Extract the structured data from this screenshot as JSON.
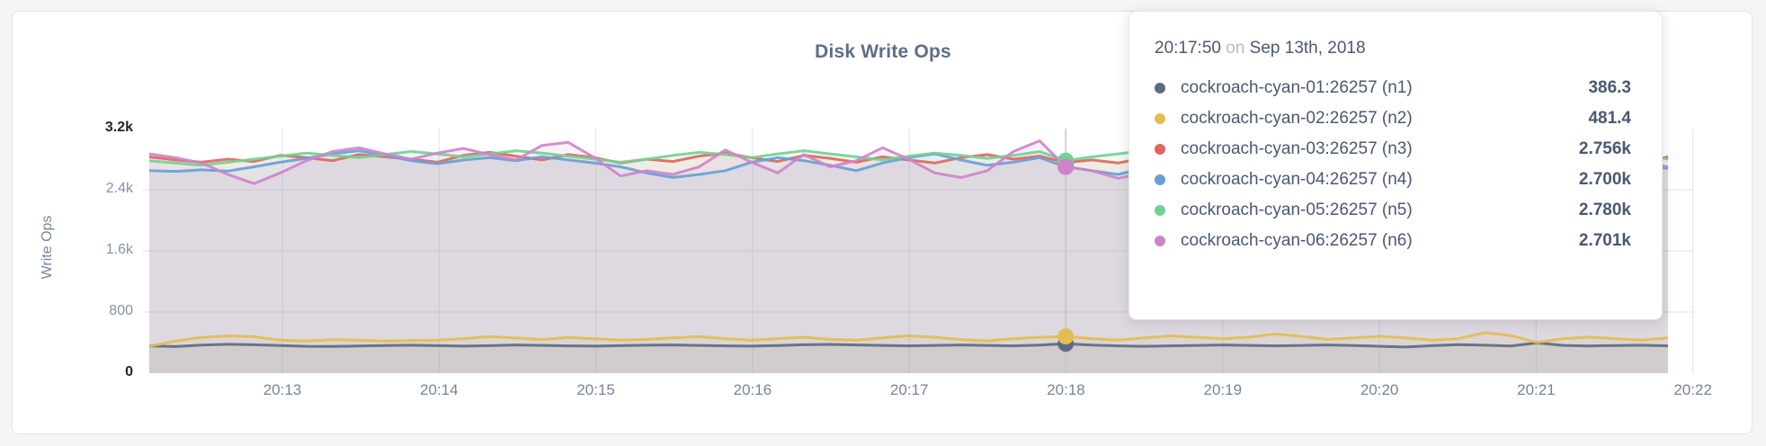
{
  "tooltip": {
    "time": "20:17:50",
    "conjunction": "on",
    "date": "Sep 13th, 2018"
  },
  "chart_data": {
    "type": "line",
    "title": "Disk Write Ops",
    "ylabel": "Write Ops",
    "xlabel": "",
    "ylim": [
      0,
      3200
    ],
    "grid": true,
    "legend_position": "tooltip",
    "y_ticks": [
      {
        "label": "0",
        "value": 0,
        "strong": true
      },
      {
        "label": "800",
        "value": 800,
        "strong": false
      },
      {
        "label": "1.6k",
        "value": 1600,
        "strong": false
      },
      {
        "label": "2.4k",
        "value": 2400,
        "strong": false
      },
      {
        "label": "3.2k",
        "value": 3200,
        "strong": true
      }
    ],
    "x_ticks": [
      "20:13",
      "20:14",
      "20:15",
      "20:16",
      "20:17",
      "20:18",
      "20:19",
      "20:20",
      "20:21",
      "20:22"
    ],
    "hover_index": 35,
    "hover_line_color": "#c6c6c6",
    "series": [
      {
        "name": "cockroach-cyan-01:26257 (n1)",
        "color": "#5d6a84",
        "hover_value": "386.3",
        "values": [
          358,
          348,
          368,
          378,
          372,
          362,
          352,
          350,
          356,
          362,
          366,
          360,
          354,
          360,
          370,
          364,
          358,
          354,
          360,
          366,
          370,
          364,
          358,
          354,
          362,
          372,
          376,
          370,
          364,
          358,
          364,
          370,
          364,
          358,
          368,
          386,
          368,
          358,
          352,
          358,
          364,
          370,
          364,
          358,
          364,
          370,
          362,
          352,
          342,
          360,
          374,
          366,
          356,
          398,
          364,
          356,
          362,
          366,
          358
        ]
      },
      {
        "name": "cockroach-cyan-02:26257 (n2)",
        "color": "#e3bd51",
        "hover_value": "481.4",
        "values": [
          352,
          420,
          468,
          488,
          478,
          432,
          420,
          438,
          430,
          420,
          426,
          432,
          452,
          478,
          460,
          440,
          468,
          450,
          432,
          442,
          462,
          480,
          452,
          430,
          452,
          470,
          442,
          430,
          462,
          490,
          470,
          440,
          422,
          452,
          470,
          481,
          452,
          432,
          462,
          490,
          470,
          450,
          472,
          512,
          482,
          442,
          462,
          482,
          462,
          432,
          452,
          530,
          492,
          402,
          452,
          472,
          452,
          432,
          462
        ]
      },
      {
        "name": "cockroach-cyan-03:26257 (n3)",
        "color": "#df675f",
        "hover_value": "2.756k",
        "values": [
          2830,
          2790,
          2760,
          2800,
          2770,
          2850,
          2820,
          2780,
          2860,
          2830,
          2800,
          2760,
          2850,
          2890,
          2840,
          2790,
          2860,
          2820,
          2750,
          2800,
          2770,
          2840,
          2880,
          2820,
          2770,
          2850,
          2810,
          2760,
          2830,
          2790,
          2750,
          2820,
          2860,
          2800,
          2840,
          2756,
          2790,
          2750,
          2820,
          2780,
          2850,
          2800,
          2760,
          2830,
          2790,
          2850,
          2810,
          2770,
          2840,
          2800,
          2760,
          2830,
          2870,
          2810,
          2770,
          2840,
          2800,
          2760,
          2830
        ]
      },
      {
        "name": "cockroach-cyan-04:26257 (n4)",
        "color": "#689fd6",
        "hover_value": "2.700k",
        "values": [
          2650,
          2640,
          2660,
          2645,
          2700,
          2760,
          2810,
          2870,
          2910,
          2850,
          2780,
          2740,
          2790,
          2820,
          2780,
          2830,
          2790,
          2750,
          2700,
          2620,
          2560,
          2600,
          2650,
          2760,
          2820,
          2780,
          2720,
          2650,
          2750,
          2820,
          2870,
          2790,
          2720,
          2760,
          2820,
          2700,
          2650,
          2600,
          2680,
          2750,
          2810,
          2860,
          2790,
          2720,
          2760,
          2700,
          2650,
          2710,
          2770,
          2820,
          2760,
          2700,
          2740,
          2790,
          2750,
          2700,
          2660,
          2720,
          2680
        ]
      },
      {
        "name": "cockroach-cyan-05:26257 (n5)",
        "color": "#72d194",
        "hover_value": "2.780k",
        "values": [
          2780,
          2750,
          2720,
          2760,
          2800,
          2840,
          2880,
          2850,
          2820,
          2860,
          2900,
          2870,
          2830,
          2870,
          2910,
          2880,
          2840,
          2800,
          2760,
          2800,
          2850,
          2890,
          2860,
          2820,
          2870,
          2910,
          2870,
          2830,
          2790,
          2840,
          2880,
          2850,
          2810,
          2850,
          2900,
          2780,
          2830,
          2870,
          2910,
          2950,
          2900,
          2850,
          2800,
          2840,
          2880,
          2840,
          2800,
          2760,
          2810,
          2860,
          2820,
          2780,
          2830,
          2870,
          2830,
          2790,
          2840,
          2880,
          2800
        ]
      },
      {
        "name": "cockroach-cyan-06:26257 (n6)",
        "color": "#d083cb",
        "hover_value": "2.701k",
        "values": [
          2870,
          2820,
          2750,
          2600,
          2480,
          2620,
          2780,
          2900,
          2950,
          2870,
          2800,
          2880,
          2940,
          2860,
          2790,
          2980,
          3020,
          2820,
          2580,
          2650,
          2600,
          2700,
          2920,
          2760,
          2620,
          2860,
          2700,
          2780,
          2950,
          2800,
          2620,
          2560,
          2650,
          2900,
          3040,
          2701,
          2650,
          2550,
          2620,
          2560,
          2700,
          2880,
          2750,
          2600,
          2680,
          2590,
          2640,
          2560,
          2830,
          2690,
          2560,
          2620,
          2700,
          2880,
          2650,
          2540,
          2620,
          2760,
          2700
        ]
      }
    ]
  }
}
